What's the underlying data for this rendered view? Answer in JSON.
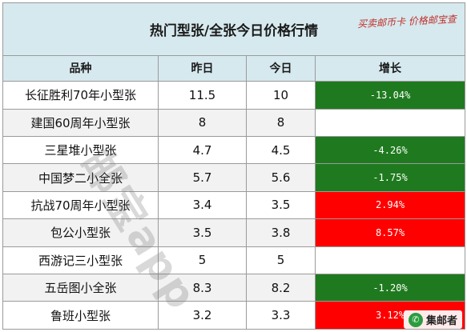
{
  "title": "热门型张/全张今日价格行情",
  "stamp": "买卖邮币卡 价格邮宝查",
  "headers": {
    "name": "品种",
    "yesterday": "昨日",
    "today": "今日",
    "change": "增长"
  },
  "rows": [
    {
      "name": "长征胜利70年小型张",
      "yesterday": "11.5",
      "today": "10",
      "change": "-13.04%",
      "trend": "down"
    },
    {
      "name": "建国60周年小型张",
      "yesterday": "8",
      "today": "8",
      "change": "",
      "trend": "none"
    },
    {
      "name": "三星堆小型张",
      "yesterday": "4.7",
      "today": "4.5",
      "change": "-4.26%",
      "trend": "down"
    },
    {
      "name": "中国梦二小全张",
      "yesterday": "5.7",
      "today": "5.6",
      "change": "-1.75%",
      "trend": "down"
    },
    {
      "name": "抗战70周年小型张",
      "yesterday": "3.4",
      "today": "3.5",
      "change": "2.94%",
      "trend": "up"
    },
    {
      "name": "包公小型张",
      "yesterday": "3.5",
      "today": "3.8",
      "change": "8.57%",
      "trend": "up"
    },
    {
      "name": "西游记三小型张",
      "yesterday": "5",
      "today": "5",
      "change": "",
      "trend": "none"
    },
    {
      "name": "五岳图小全张",
      "yesterday": "8.3",
      "today": "8.2",
      "change": "-1.20%",
      "trend": "down"
    },
    {
      "name": "鲁班小型张",
      "yesterday": "3.2",
      "today": "3.3",
      "change": "3.12%",
      "trend": "up"
    }
  ],
  "watermark": "邮宝app",
  "brand": {
    "icon": "wechat-icon",
    "label": "集邮者"
  },
  "colors": {
    "down": "#1f7a1f",
    "up": "#ff0000",
    "header_bg": "#d6e9ef"
  }
}
